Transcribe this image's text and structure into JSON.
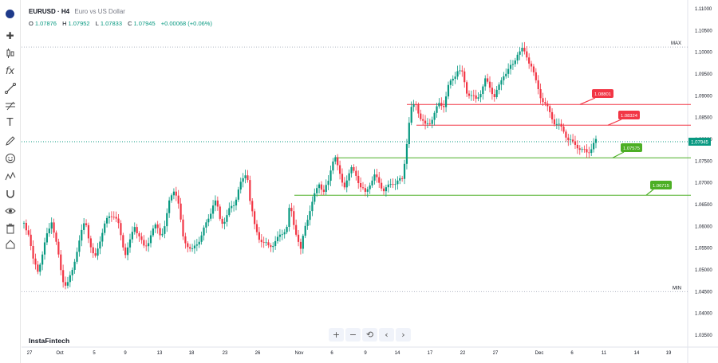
{
  "header": {
    "symbol": "EURUSD · H4",
    "description": "Euro vs US Dollar",
    "ohlc": {
      "o_label": "O",
      "o": "1.07876",
      "h_label": "H",
      "h": "1.07952",
      "l_label": "L",
      "l": "1.07833",
      "c_label": "C",
      "c": "1.07945",
      "change": "+0.00068 (+0.06%)"
    }
  },
  "watermark": "InstaFintech",
  "nav_buttons": [
    "+",
    "−",
    "⟲",
    "‹",
    "›"
  ],
  "toolbar_icons": [
    "crosshair-icon",
    "candles-icon",
    "indicators-icon",
    "trendline-icon",
    "fibonacci-icon",
    "brush-icon",
    "text-icon",
    "pen-icon",
    "emoji-icon",
    "pattern-icon",
    "magnet-icon",
    "eye-icon",
    "trash-icon",
    "home-icon"
  ],
  "colors": {
    "bull": "#089981",
    "bear": "#f23645",
    "resistance": "#f23645",
    "support": "#4caf25",
    "price_line": "#089981"
  },
  "chart_data": {
    "type": "candlestick",
    "symbol": "EURUSD",
    "timeframe": "H4",
    "ylim": [
      1.032,
      1.112
    ],
    "y_ticks": [
      "1.11000",
      "1.10500",
      "1.10000",
      "1.09500",
      "1.09000",
      "1.08500",
      "1.08000",
      "1.07500",
      "1.07000",
      "1.06500",
      "1.06000",
      "1.05500",
      "1.05000",
      "1.04500",
      "1.04000",
      "1.03500"
    ],
    "x_ticks": [
      "27",
      "Oct",
      "5",
      "9",
      "13",
      "18",
      "23",
      "26",
      "Nov",
      "6",
      "9",
      "14",
      "17",
      "22",
      "27",
      "Dec",
      "6",
      "11",
      "14",
      "19"
    ],
    "current_price": {
      "label": "1.07945",
      "value": 1.07945
    },
    "levels": [
      {
        "label": "1.08801",
        "value": 1.08801,
        "kind": "resistance"
      },
      {
        "label": "1.08324",
        "value": 1.08324,
        "kind": "resistance"
      },
      {
        "label": "1.07575",
        "value": 1.07575,
        "kind": "support"
      },
      {
        "label": "1.06715",
        "value": 1.06715,
        "kind": "support"
      }
    ],
    "dotted_levels": [
      {
        "label": "MAX",
        "value": 1.1012
      },
      {
        "label": "MIN",
        "value": 1.045
      }
    ],
    "close_path": [
      [
        0,
        1.0608
      ],
      [
        6,
        1.0585
      ],
      [
        12,
        1.052
      ],
      [
        18,
        1.05
      ],
      [
        24,
        1.0535
      ],
      [
        30,
        1.058
      ],
      [
        36,
        1.0615
      ],
      [
        42,
        1.056
      ],
      [
        48,
        1.05
      ],
      [
        52,
        1.047
      ],
      [
        56,
        1.0465
      ],
      [
        62,
        1.049
      ],
      [
        68,
        1.054
      ],
      [
        74,
        1.058
      ],
      [
        80,
        1.0615
      ],
      [
        86,
        1.056
      ],
      [
        92,
        1.052
      ],
      [
        98,
        1.0565
      ],
      [
        104,
        1.06
      ],
      [
        110,
        1.062
      ],
      [
        116,
        1.063
      ],
      [
        122,
        1.061
      ],
      [
        128,
        1.056
      ],
      [
        132,
        1.054
      ],
      [
        138,
        1.0565
      ],
      [
        144,
        1.06
      ],
      [
        150,
        1.058
      ],
      [
        156,
        1.055
      ],
      [
        160,
        1.0555
      ],
      [
        166,
        1.059
      ],
      [
        172,
        1.06
      ],
      [
        178,
        1.058
      ],
      [
        184,
        1.0605
      ],
      [
        190,
        1.0665
      ],
      [
        196,
        1.069
      ],
      [
        202,
        1.064
      ],
      [
        206,
        1.058
      ],
      [
        212,
        1.056
      ],
      [
        218,
        1.054
      ],
      [
        224,
        1.056
      ],
      [
        230,
        1.0575
      ],
      [
        236,
        1.06
      ],
      [
        242,
        1.063
      ],
      [
        248,
        1.066
      ],
      [
        252,
        1.064
      ],
      [
        256,
        1.061
      ],
      [
        262,
        1.0615
      ],
      [
        268,
        1.064
      ],
      [
        274,
        1.0655
      ],
      [
        280,
        1.069
      ],
      [
        286,
        1.071
      ],
      [
        290,
        1.073
      ],
      [
        294,
        1.066
      ],
      [
        300,
        1.06
      ],
      [
        306,
        1.0575
      ],
      [
        312,
        1.056
      ],
      [
        318,
        1.0555
      ],
      [
        324,
        1.056
      ],
      [
        330,
        1.057
      ],
      [
        336,
        1.0585
      ],
      [
        342,
        1.06
      ],
      [
        346,
        1.065
      ],
      [
        350,
        1.061
      ],
      [
        356,
        1.0575
      ],
      [
        360,
        1.0545
      ],
      [
        366,
        1.06
      ],
      [
        372,
        1.064
      ],
      [
        378,
        1.067
      ],
      [
        384,
        1.07
      ],
      [
        390,
        1.068
      ],
      [
        396,
        1.07
      ],
      [
        400,
        1.074
      ],
      [
        404,
        1.077
      ],
      [
        410,
        1.072
      ],
      [
        416,
        1.069
      ],
      [
        420,
        1.071
      ],
      [
        426,
        1.073
      ],
      [
        432,
        1.072
      ],
      [
        438,
        1.069
      ],
      [
        444,
        1.0675
      ],
      [
        450,
        1.07
      ],
      [
        456,
        1.0715
      ],
      [
        462,
        1.07
      ],
      [
        468,
        1.0685
      ],
      [
        474,
        1.069
      ],
      [
        480,
        1.07
      ],
      [
        486,
        1.0705
      ],
      [
        492,
        1.0705
      ],
      [
        496,
        1.076
      ],
      [
        500,
        1.083
      ],
      [
        504,
        1.087
      ],
      [
        510,
        1.088
      ],
      [
        516,
        1.085
      ],
      [
        522,
        1.083
      ],
      [
        528,
        1.084
      ],
      [
        534,
        1.086
      ],
      [
        540,
        1.088
      ],
      [
        546,
        1.088
      ],
      [
        552,
        1.092
      ],
      [
        558,
        1.094
      ],
      [
        564,
        1.096
      ],
      [
        570,
        1.095
      ],
      [
        576,
        1.091
      ],
      [
        582,
        1.09
      ],
      [
        588,
        1.089
      ],
      [
        594,
        1.091
      ],
      [
        600,
        1.0935
      ],
      [
        606,
        1.092
      ],
      [
        612,
        1.09
      ],
      [
        618,
        1.092
      ],
      [
        624,
        1.095
      ],
      [
        630,
        1.096
      ],
      [
        636,
        1.097
      ],
      [
        642,
        1.1
      ],
      [
        648,
        1.1005
      ],
      [
        654,
        1.099
      ],
      [
        660,
        1.097
      ],
      [
        666,
        1.093
      ],
      [
        672,
        1.09
      ],
      [
        678,
        1.088
      ],
      [
        684,
        1.086
      ],
      [
        690,
        1.084
      ],
      [
        696,
        1.083
      ],
      [
        702,
        1.082
      ],
      [
        708,
        1.08
      ],
      [
        714,
        1.079
      ],
      [
        720,
        1.0785
      ],
      [
        726,
        1.0775
      ],
      [
        732,
        1.0768
      ],
      [
        736,
        1.0775
      ],
      [
        740,
        1.079
      ],
      [
        744,
        1.0795
      ]
    ]
  }
}
